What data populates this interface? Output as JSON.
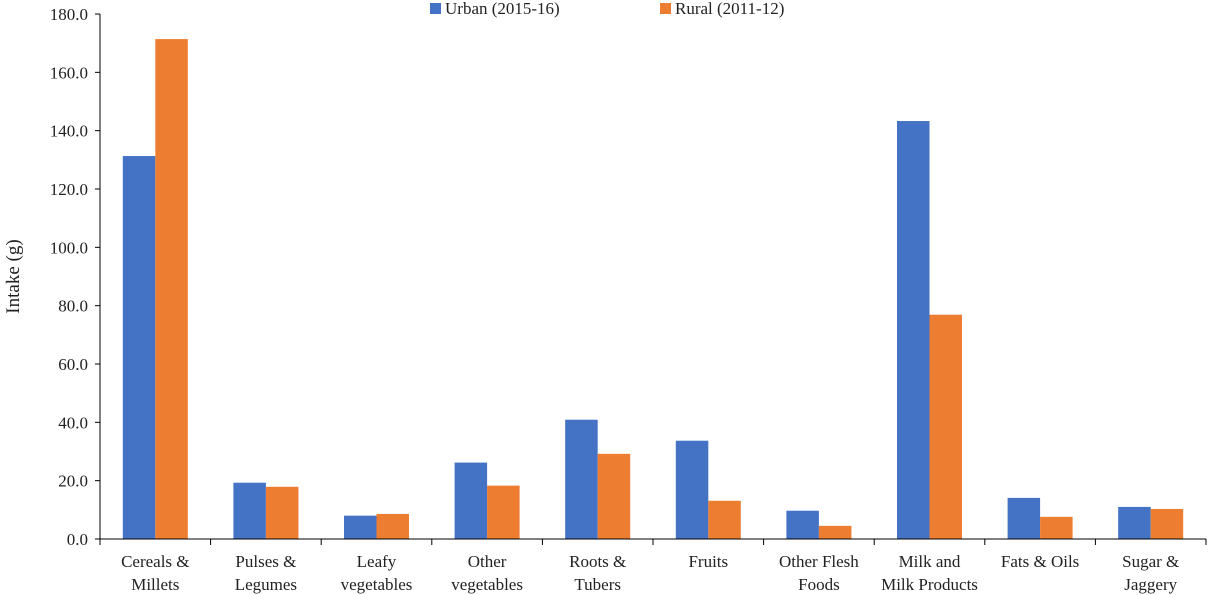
{
  "chart_data": {
    "type": "bar",
    "title": "",
    "xlabel": "",
    "ylabel": "Intake (g)",
    "ylim": [
      0,
      180
    ],
    "yticks": [
      0,
      20,
      40,
      60,
      80,
      100,
      120,
      140,
      160,
      180
    ],
    "ytick_labels": [
      "0.0",
      "20.0",
      "40.0",
      "60.0",
      "80.0",
      "100.0",
      "120.0",
      "140.0",
      "160.0",
      "180.0"
    ],
    "grid": false,
    "legend_position": "top-center",
    "categories": [
      [
        "Cereals &",
        "Millets"
      ],
      [
        "Pulses &",
        "Legumes"
      ],
      [
        "Leafy",
        "vegetables"
      ],
      [
        "Other",
        "vegetables"
      ],
      [
        "Roots &",
        "Tubers"
      ],
      [
        "Fruits"
      ],
      [
        "Other Flesh",
        "Foods"
      ],
      [
        "Milk and",
        "Milk Products"
      ],
      [
        "Fats & Oils"
      ],
      [
        "Sugar &",
        "Jaggery"
      ]
    ],
    "series": [
      {
        "name": "Urban (2015-16)",
        "color": "#4472C4",
        "values": [
          131.3,
          19.3,
          8.0,
          26.2,
          40.9,
          33.7,
          9.7,
          143.3,
          14.1,
          11.0
        ]
      },
      {
        "name": "Rural (2011-12)",
        "color": "#ED7D31",
        "values": [
          171.4,
          17.9,
          8.6,
          18.3,
          29.2,
          13.1,
          4.5,
          76.9,
          7.6,
          10.3
        ]
      }
    ]
  }
}
